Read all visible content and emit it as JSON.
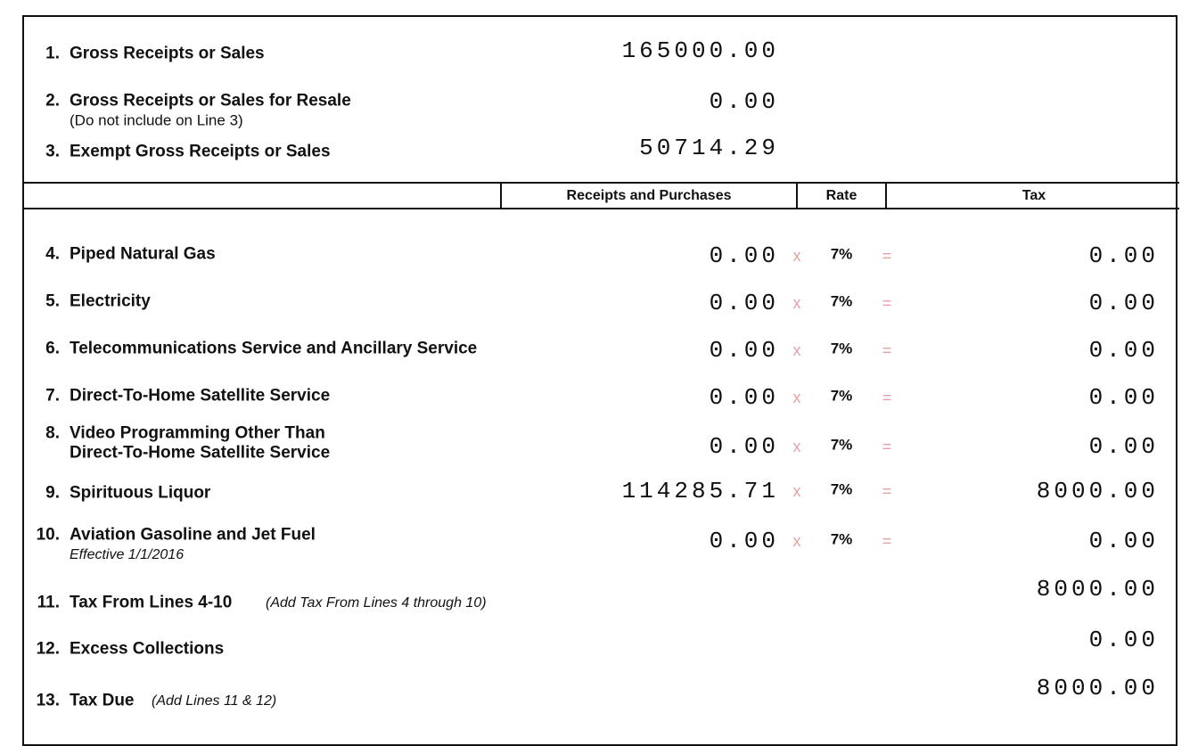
{
  "top_lines": [
    {
      "number": "1.",
      "label": "Gross Receipts or Sales",
      "amount": "165000.00"
    },
    {
      "number": "2.",
      "label": "Gross Receipts or Sales for Resale",
      "note": "(Do not include on Line 3)",
      "amount": "0.00"
    },
    {
      "number": "3.",
      "label": "Exempt Gross Receipts or Sales",
      "amount": "50714.29"
    }
  ],
  "table_header": {
    "receipts": "Receipts and Purchases",
    "rate": "Rate",
    "tax": "Tax"
  },
  "rate_lines": [
    {
      "number": "4.",
      "label": "Piped Natural Gas",
      "receipts": "0.00",
      "multiply": "x",
      "rate": "7%",
      "equals": "=",
      "tax": "0.00"
    },
    {
      "number": "5.",
      "label": "Electricity",
      "receipts": "0.00",
      "multiply": "x",
      "rate": "7%",
      "equals": "=",
      "tax": "0.00"
    },
    {
      "number": "6.",
      "label": "Telecommunications Service and Ancillary Service",
      "receipts": "0.00",
      "multiply": "x",
      "rate": "7%",
      "equals": "=",
      "tax": "0.00"
    },
    {
      "number": "7.",
      "label": "Direct-To-Home Satellite Service",
      "receipts": "0.00",
      "multiply": "x",
      "rate": "7%",
      "equals": "=",
      "tax": "0.00"
    },
    {
      "number": "8.",
      "label": "Video Programming Other Than",
      "label2": "Direct-To-Home Satellite Service",
      "receipts": "0.00",
      "multiply": "x",
      "rate": "7%",
      "equals": "=",
      "tax": "0.00"
    },
    {
      "number": "9.",
      "label": "Spirituous Liquor",
      "receipts": "114285.71",
      "multiply": "x",
      "rate": "7%",
      "equals": "=",
      "tax": "8000.00"
    },
    {
      "number": "10.",
      "label": "Aviation Gasoline and Jet Fuel",
      "note": "Effective 1/1/2016",
      "receipts": "0.00",
      "multiply": "x",
      "rate": "7%",
      "equals": "=",
      "tax": "0.00"
    }
  ],
  "total_lines": [
    {
      "number": "11.",
      "label": "Tax From Lines 4-10",
      "note": "(Add Tax From Lines 4 through 10)",
      "tax": "8000.00"
    },
    {
      "number": "12.",
      "label": "Excess Collections",
      "tax": "0.00"
    },
    {
      "number": "13.",
      "label": "Tax Due",
      "note": "(Add Lines 11 & 12)",
      "tax": "8000.00"
    }
  ]
}
